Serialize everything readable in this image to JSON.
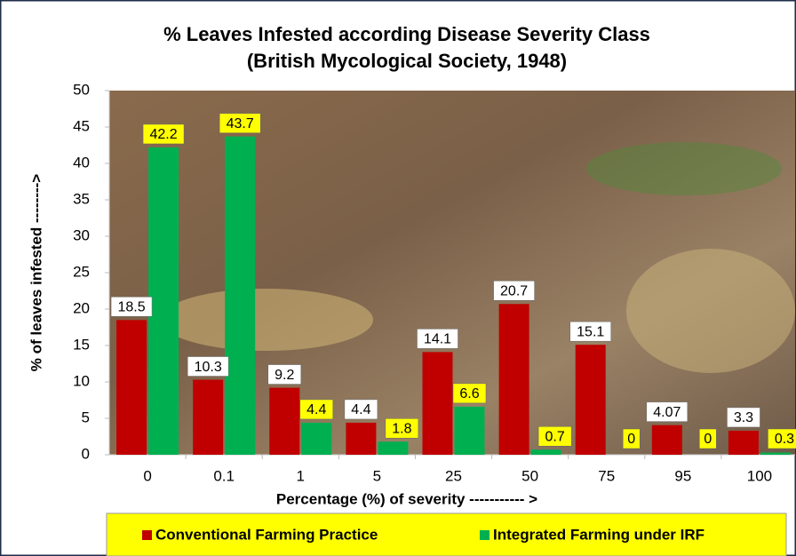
{
  "chart_data": {
    "type": "bar",
    "title": "% Leaves  Infested according Disease Severity Class",
    "subtitle": "(British Mycological Society, 1948)",
    "x_label": "Percentage  (%) of severity ----------- >",
    "y_label": "% of leaves infested -------->",
    "categories": [
      "0",
      "0.1",
      "1",
      "5",
      "25",
      "50",
      "75",
      "95",
      "100"
    ],
    "series": [
      {
        "name": "Conventional Farming Practice",
        "color": "#c00000",
        "label_box": "#ffffff",
        "values": [
          18.5,
          10.3,
          9.2,
          4.4,
          14.1,
          20.7,
          15.1,
          4.07,
          3.3
        ]
      },
      {
        "name": "Integrated Farming under IRF",
        "color": "#00b050",
        "label_box": "#ffff00",
        "values": [
          42.2,
          43.7,
          4.4,
          1.8,
          6.6,
          0.7,
          0,
          0,
          0.3
        ]
      }
    ],
    "ylim": [
      0,
      50
    ],
    "yticks": [
      0,
      5,
      10,
      15,
      20,
      25,
      30,
      35,
      40,
      45,
      50
    ],
    "grid": false,
    "legend": "bottom"
  }
}
